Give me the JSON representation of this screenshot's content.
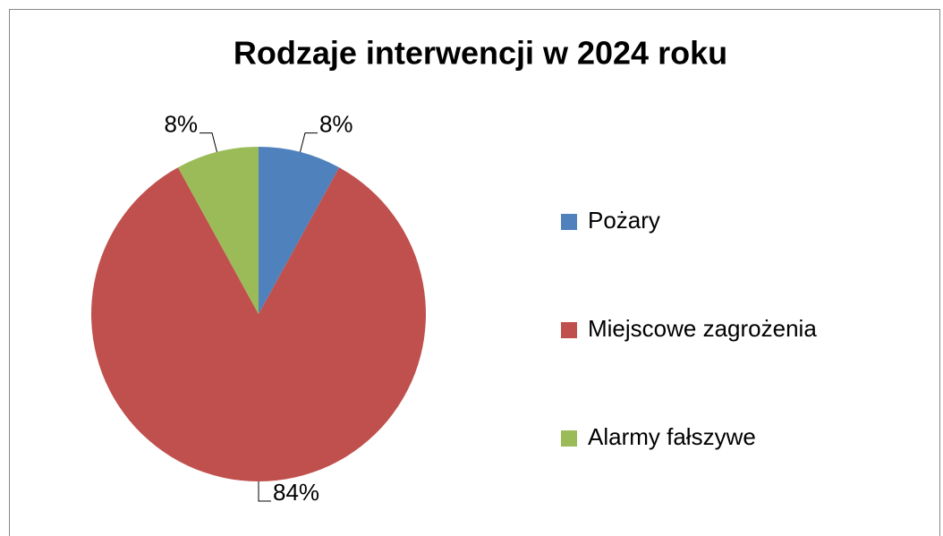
{
  "chart_data": {
    "type": "pie",
    "title": "Rodzaje interwencji w 2024 roku",
    "categories": [
      "Pożary",
      "Miejscowe zagrożenia",
      "Alarmy fałszywe"
    ],
    "values": [
      8,
      84,
      8
    ],
    "value_labels": [
      "8%",
      "84%",
      "8%"
    ],
    "colors": [
      "#4f81bd",
      "#c0504d",
      "#9bbb59"
    ],
    "legend": "right"
  }
}
